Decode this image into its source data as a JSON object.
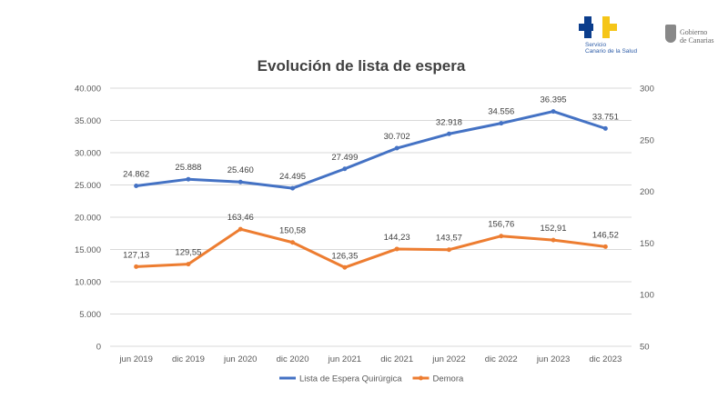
{
  "logos": {
    "scs": {
      "line1": "Servicio",
      "line2": "Canario de la Salud",
      "colors": [
        "#0b3d8c",
        "#f5c518"
      ]
    },
    "gobierno": {
      "line1": "Gobierno",
      "line2": "de Canarias",
      "icon": "coat-of-arms-icon"
    }
  },
  "chart_data": {
    "type": "line",
    "title": "Evolución de lista de espera",
    "categories": [
      "jun 2019",
      "dic 2019",
      "jun 2020",
      "dic 2020",
      "jun 2021",
      "dic 2021",
      "jun 2022",
      "dic 2022",
      "jun 2023",
      "dic 2023"
    ],
    "y_left": {
      "range": [
        0,
        40000
      ],
      "ticks": [
        "0",
        "5.000",
        "10.000",
        "15.000",
        "20.000",
        "25.000",
        "30.000",
        "35.000",
        "40.000"
      ],
      "tick_values": [
        0,
        5000,
        10000,
        15000,
        20000,
        25000,
        30000,
        35000,
        40000
      ]
    },
    "y_right": {
      "range": [
        50,
        300
      ],
      "ticks": [
        "50",
        "100",
        "150",
        "200",
        "250",
        "300"
      ],
      "tick_values": [
        50,
        100,
        150,
        200,
        250,
        300
      ]
    },
    "grid": true,
    "legend_position": "bottom",
    "series": [
      {
        "name": "Lista de Espera Quirúrgica",
        "axis": "left",
        "color": "#4472c4",
        "values": [
          24862,
          25888,
          25460,
          24495,
          27499,
          30702,
          32918,
          34556,
          36395,
          33751
        ],
        "labels": [
          "24.862",
          "25.888",
          "25.460",
          "24.495",
          "27.499",
          "30.702",
          "32.918",
          "34.556",
          "36.395",
          "33.751"
        ]
      },
      {
        "name": "Demora",
        "axis": "right",
        "color": "#ed7d31",
        "values": [
          127.13,
          129.55,
          163.46,
          150.58,
          126.35,
          144.23,
          143.57,
          156.76,
          152.91,
          146.52
        ],
        "labels": [
          "127,13",
          "129,55",
          "163,46",
          "150,58",
          "126,35",
          "144,23",
          "143,57",
          "156,76",
          "152,91",
          "146,52"
        ]
      }
    ]
  }
}
